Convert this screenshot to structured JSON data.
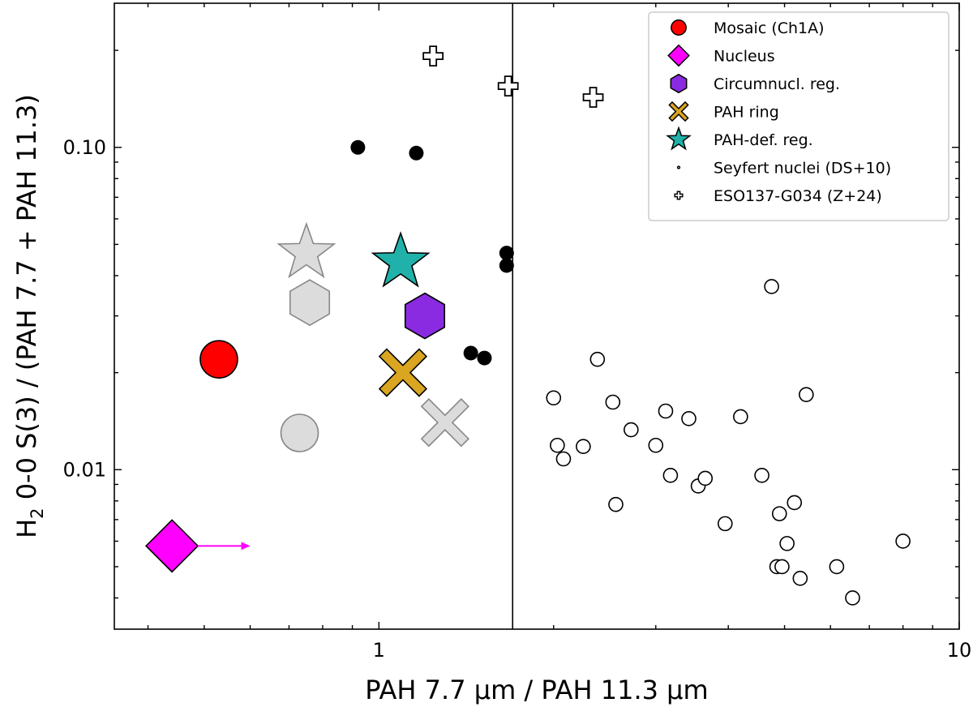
{
  "chart_data": {
    "type": "scatter",
    "xscale": "log",
    "yscale": "log",
    "xlim": [
      0.35,
      10
    ],
    "ylim": [
      0.0032,
      0.28
    ],
    "xticks": [
      {
        "value": 1,
        "label": "1"
      },
      {
        "value": 10,
        "label": "10"
      }
    ],
    "yticks": [
      {
        "value": 0.01,
        "label": "0.01"
      },
      {
        "value": 0.1,
        "label": "0.10"
      }
    ],
    "xlabel": "PAH 7.7 μm / PAH 11.3 μm",
    "ylabel_parts": {
      "main": "H",
      "sub": "2",
      "rest": " 0-0 S(3) / (PAH 7.7 + PAH 11.3)"
    },
    "vline_x": 1.7,
    "legend_position": "top-right",
    "legend": [
      {
        "label": "Mosaic (Ch1A)",
        "marker": "circle",
        "color": "#ff0000"
      },
      {
        "label": "Nucleus",
        "marker": "diamond",
        "color": "#ff00ff"
      },
      {
        "label": "Circumnucl. reg.",
        "marker": "hexagon",
        "color": "#8a2be2"
      },
      {
        "label": "PAH ring",
        "marker": "cross",
        "color": "#daa520"
      },
      {
        "label": "PAH-def. reg.",
        "marker": "star",
        "color": "#20b2aa"
      },
      {
        "label": "Seyfert nuclei (DS+10)",
        "marker": "small-open-circle",
        "color": "#ffffff"
      },
      {
        "label": "ESO137-G034 (Z+24)",
        "marker": "plus",
        "color": "#ffffff"
      }
    ],
    "series": [
      {
        "name": "Mosaic (Ch1A)",
        "marker": "circle",
        "color": "#ff0000",
        "points": [
          [
            0.53,
            0.022
          ]
        ]
      },
      {
        "name": "Nucleus",
        "marker": "diamond",
        "color": "#ff00ff",
        "points": [
          [
            0.44,
            0.0058
          ]
        ],
        "lower_limit_arrow_to_x": 0.6
      },
      {
        "name": "Circumnucl. reg.",
        "marker": "hexagon",
        "color": "#8a2be2",
        "points": [
          [
            1.2,
            0.03
          ]
        ]
      },
      {
        "name": "PAH ring",
        "marker": "cross",
        "color": "#daa520",
        "points": [
          [
            1.1,
            0.02
          ]
        ]
      },
      {
        "name": "PAH-def. reg.",
        "marker": "star",
        "color": "#20b2aa",
        "points": [
          [
            1.09,
            0.044
          ]
        ]
      },
      {
        "name": "Seyfert nuclei (DS+10)",
        "marker": "open-circle",
        "color": "#ffffff",
        "points": [
          [
            2.0,
            0.0167
          ],
          [
            2.03,
            0.0119
          ],
          [
            2.08,
            0.0108
          ],
          [
            2.25,
            0.0118
          ],
          [
            2.38,
            0.022
          ],
          [
            2.53,
            0.0162
          ],
          [
            2.56,
            0.0078
          ],
          [
            2.72,
            0.0133
          ],
          [
            3.0,
            0.0119
          ],
          [
            3.12,
            0.0152
          ],
          [
            3.18,
            0.0096
          ],
          [
            3.42,
            0.0144
          ],
          [
            3.55,
            0.0089
          ],
          [
            3.65,
            0.0094
          ],
          [
            3.95,
            0.0068
          ],
          [
            4.2,
            0.0146
          ],
          [
            4.57,
            0.0096
          ],
          [
            4.75,
            0.037
          ],
          [
            4.85,
            0.005
          ],
          [
            4.9,
            0.0073
          ],
          [
            4.95,
            0.005
          ],
          [
            5.05,
            0.0059
          ],
          [
            5.2,
            0.0079
          ],
          [
            5.32,
            0.0046
          ],
          [
            5.45,
            0.0171
          ],
          [
            6.15,
            0.005
          ],
          [
            6.55,
            0.004
          ],
          [
            8.0,
            0.006
          ]
        ]
      },
      {
        "name": "ESO137-G034 (Z+24)",
        "marker": "plus",
        "color": "#ffffff",
        "points": [
          [
            1.24,
            0.192
          ],
          [
            1.67,
            0.155
          ],
          [
            2.34,
            0.143
          ]
        ]
      },
      {
        "name": "black points",
        "marker": "filled-circle",
        "color": "#000000",
        "points": [
          [
            0.92,
            0.1
          ],
          [
            1.16,
            0.096
          ],
          [
            1.44,
            0.023
          ],
          [
            1.52,
            0.0222
          ],
          [
            1.66,
            0.047
          ],
          [
            1.66,
            0.043
          ]
        ]
      },
      {
        "name": "grey markers",
        "marker": "mixed",
        "color": "#dcdcdc",
        "points": [
          [
            0.75,
            0.047,
            "star"
          ],
          [
            0.76,
            0.033,
            "hexagon"
          ],
          [
            0.73,
            0.013,
            "circle"
          ],
          [
            1.3,
            0.014,
            "cross"
          ]
        ]
      }
    ]
  }
}
